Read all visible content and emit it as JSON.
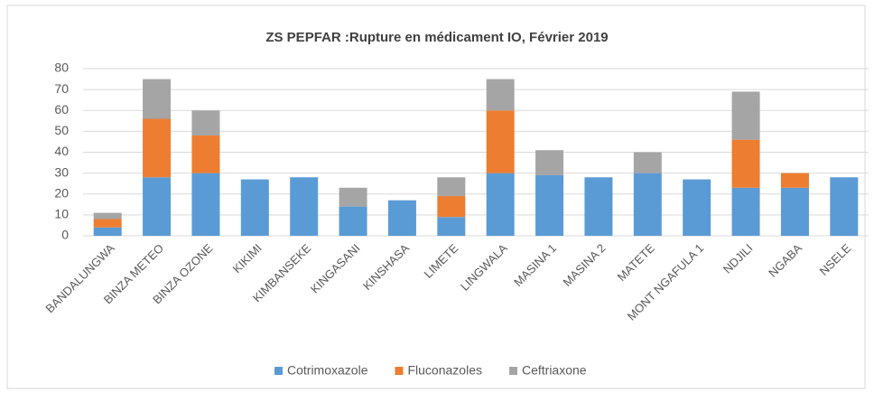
{
  "chart_data": {
    "type": "bar",
    "stacked": true,
    "title": "ZS PEPFAR :Rupture en médicament IO, Février 2019",
    "categories": [
      "BANDALUNGWA",
      "BINZA METEO",
      "BINZA OZONE",
      "KIKIMI",
      "KIMBANSEKE",
      "KINGASANI",
      "KINSHASA",
      "LIMETE",
      "LINGWALA",
      "MASINA 1",
      "MASINA 2",
      "MATETE",
      "MONT NGAFULA 1",
      "NDJILI",
      "NGABA",
      "NSELE"
    ],
    "series": [
      {
        "name": "Cotrimoxazole",
        "color": "#5b9bd5",
        "values": [
          4,
          28,
          30,
          27,
          28,
          14,
          17,
          9,
          30,
          29,
          28,
          30,
          27,
          23,
          23,
          28
        ]
      },
      {
        "name": "Fluconazoles",
        "color": "#ed7d31",
        "values": [
          4,
          28,
          18,
          0,
          0,
          0,
          0,
          10,
          30,
          0,
          0,
          0,
          0,
          23,
          7,
          0
        ]
      },
      {
        "name": "Ceftriaxone",
        "color": "#a5a5a5",
        "values": [
          3,
          19,
          12,
          0,
          0,
          9,
          0,
          9,
          15,
          12,
          0,
          10,
          0,
          23,
          0,
          0
        ]
      }
    ],
    "ylim": [
      0,
      80
    ],
    "yticks": [
      0,
      10,
      20,
      30,
      40,
      50,
      60,
      70,
      80
    ],
    "grid": true,
    "legend": "bottom"
  }
}
